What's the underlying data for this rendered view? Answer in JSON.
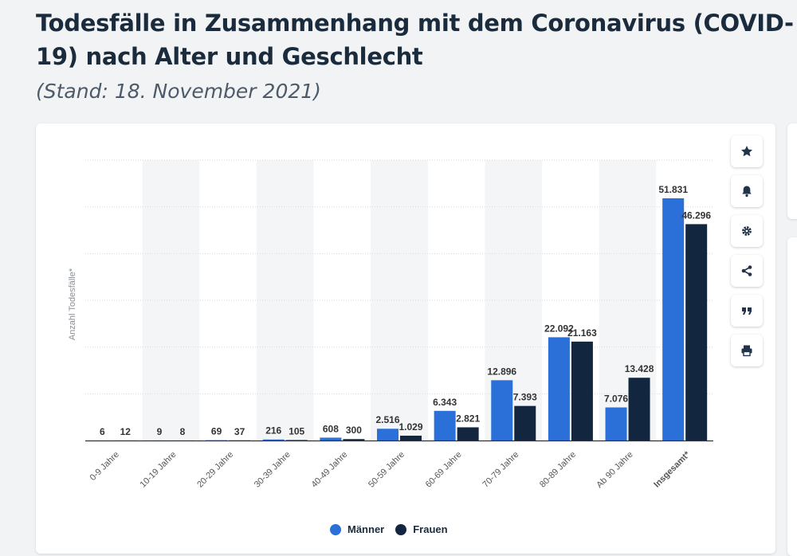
{
  "header": {
    "title": "Todesfälle in Zusammenhang mit dem Coronavirus (COVID-19) nach Alter und Geschlecht",
    "subtitle": "(Stand: 18. November 2021)"
  },
  "toolbar": {
    "buttons": [
      {
        "name": "star-icon"
      },
      {
        "name": "bell-icon"
      },
      {
        "name": "gear-icon"
      },
      {
        "name": "share-icon"
      },
      {
        "name": "quote-icon"
      },
      {
        "name": "print-icon"
      }
    ]
  },
  "colors": {
    "maenner": "#2b6fd8",
    "frauen": "#12263f",
    "band": "#f4f5f6",
    "grid": "#d7dade",
    "axis": "#333333"
  },
  "chart_data": {
    "type": "bar",
    "ylabel": "Anzahl Todesfälle*",
    "ylim": [
      0,
      60000
    ],
    "grid": true,
    "legend_position": "bottom",
    "categories": [
      "0-9 Jahre",
      "10-19 Jahre",
      "20-29 Jahre",
      "30-39 Jahre",
      "40-49 Jahre",
      "50-59 Jahre",
      "60-69 Jahre",
      "70-79 Jahre",
      "80-89 Jahre",
      "Ab 90 Jahre",
      "Insgesamt*"
    ],
    "series": [
      {
        "name": "Männer",
        "values": [
          6,
          9,
          69,
          216,
          608,
          2516,
          6343,
          12896,
          22092,
          7076,
          51831
        ],
        "labels": [
          "6",
          "9",
          "69",
          "216",
          "608",
          "2.516",
          "6.343",
          "12.896",
          "22.092",
          "7.076",
          "51.831"
        ]
      },
      {
        "name": "Frauen",
        "values": [
          12,
          8,
          37,
          105,
          300,
          1029,
          2821,
          7393,
          21163,
          13428,
          46296
        ],
        "labels": [
          "12",
          "8",
          "37",
          "105",
          "300",
          "1.029",
          "2.821",
          "7.393",
          "21.163",
          "13.428",
          "46.296"
        ]
      }
    ]
  }
}
